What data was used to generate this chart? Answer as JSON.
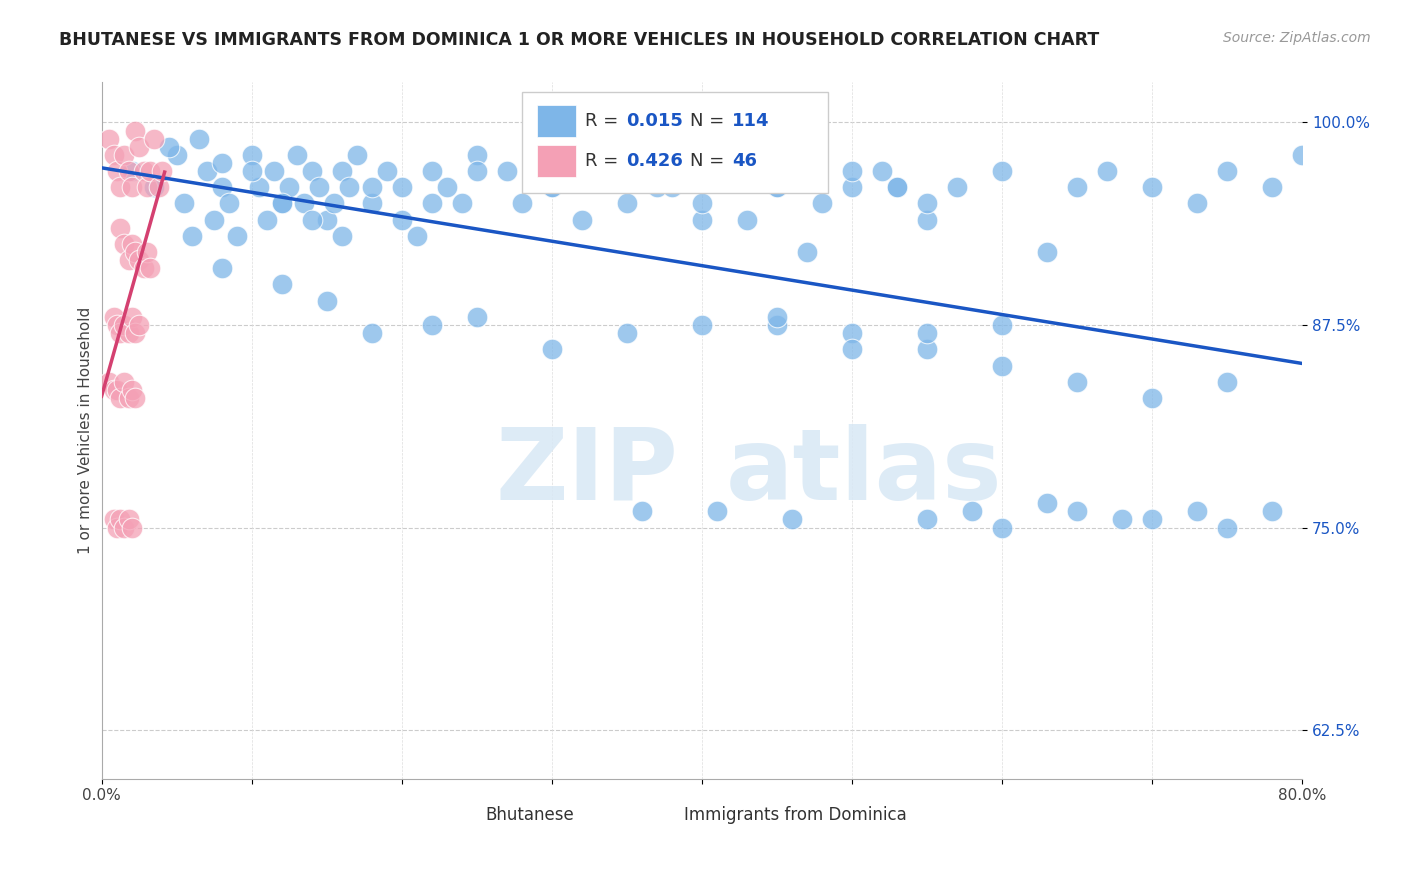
{
  "title": "BHUTANESE VS IMMIGRANTS FROM DOMINICA 1 OR MORE VEHICLES IN HOUSEHOLD CORRELATION CHART",
  "source_text": "Source: ZipAtlas.com",
  "ylabel": "1 or more Vehicles in Household",
  "xlim": [
    0.0,
    0.8
  ],
  "ylim": [
    0.595,
    1.025
  ],
  "ytick_positions": [
    0.625,
    0.75,
    0.875,
    1.0
  ],
  "yticklabels": [
    "62.5%",
    "75.0%",
    "87.5%",
    "100.0%"
  ],
  "R_blue": 0.015,
  "N_blue": 114,
  "R_pink": 0.426,
  "N_pink": 46,
  "blue_color": "#7EB6E8",
  "pink_color": "#F4A0B5",
  "blue_line_color": "#1A56C4",
  "pink_line_color": "#D44070",
  "legend_blue_label": "Bhutanese",
  "legend_pink_label": "Immigrants from Dominica",
  "blue_scatter_x": [
    0.02,
    0.035,
    0.05,
    0.055,
    0.06,
    0.065,
    0.07,
    0.075,
    0.08,
    0.085,
    0.09,
    0.1,
    0.105,
    0.11,
    0.115,
    0.12,
    0.125,
    0.13,
    0.135,
    0.14,
    0.145,
    0.15,
    0.155,
    0.16,
    0.165,
    0.17,
    0.18,
    0.19,
    0.2,
    0.21,
    0.22,
    0.23,
    0.24,
    0.25,
    0.27,
    0.3,
    0.33,
    0.35,
    0.37,
    0.4,
    0.43,
    0.45,
    0.47,
    0.5,
    0.52,
    0.53,
    0.55,
    0.57,
    0.6,
    0.63,
    0.65,
    0.67,
    0.7,
    0.73,
    0.75,
    0.78,
    0.045,
    0.08,
    0.1,
    0.12,
    0.14,
    0.16,
    0.18,
    0.2,
    0.22,
    0.25,
    0.28,
    0.3,
    0.32,
    0.35,
    0.38,
    0.4,
    0.43,
    0.45,
    0.48,
    0.5,
    0.53,
    0.55,
    0.45,
    0.5,
    0.55,
    0.6,
    0.08,
    0.12,
    0.15,
    0.18,
    0.22,
    0.25,
    0.3,
    0.35,
    0.4,
    0.45,
    0.5,
    0.55,
    0.6,
    0.65,
    0.7,
    0.75,
    0.55,
    0.6,
    0.65,
    0.7,
    0.75,
    0.78,
    0.58,
    0.63,
    0.68,
    0.73,
    0.36,
    0.41,
    0.46,
    0.8
  ],
  "blue_scatter_y": [
    0.97,
    0.96,
    0.98,
    0.95,
    0.93,
    0.99,
    0.97,
    0.94,
    0.96,
    0.95,
    0.93,
    0.98,
    0.96,
    0.94,
    0.97,
    0.95,
    0.96,
    0.98,
    0.95,
    0.97,
    0.96,
    0.94,
    0.95,
    0.97,
    0.96,
    0.98,
    0.95,
    0.97,
    0.96,
    0.93,
    0.97,
    0.96,
    0.95,
    0.98,
    0.97,
    0.96,
    0.97,
    0.95,
    0.96,
    0.94,
    0.97,
    0.96,
    0.92,
    0.96,
    0.97,
    0.96,
    0.94,
    0.96,
    0.97,
    0.92,
    0.96,
    0.97,
    0.96,
    0.95,
    0.97,
    0.96,
    0.985,
    0.975,
    0.97,
    0.95,
    0.94,
    0.93,
    0.96,
    0.94,
    0.95,
    0.97,
    0.95,
    0.96,
    0.94,
    0.97,
    0.96,
    0.95,
    0.94,
    0.96,
    0.95,
    0.97,
    0.96,
    0.95,
    0.875,
    0.87,
    0.86,
    0.875,
    0.91,
    0.9,
    0.89,
    0.87,
    0.875,
    0.88,
    0.86,
    0.87,
    0.875,
    0.88,
    0.86,
    0.87,
    0.85,
    0.84,
    0.83,
    0.84,
    0.755,
    0.75,
    0.76,
    0.755,
    0.75,
    0.76,
    0.76,
    0.765,
    0.755,
    0.76,
    0.76,
    0.76,
    0.755,
    0.98
  ],
  "pink_scatter_x": [
    0.005,
    0.008,
    0.01,
    0.012,
    0.015,
    0.018,
    0.02,
    0.022,
    0.025,
    0.028,
    0.03,
    0.032,
    0.035,
    0.038,
    0.04,
    0.012,
    0.015,
    0.018,
    0.02,
    0.022,
    0.025,
    0.028,
    0.03,
    0.032,
    0.008,
    0.01,
    0.012,
    0.015,
    0.018,
    0.02,
    0.022,
    0.025,
    0.005,
    0.008,
    0.01,
    0.012,
    0.015,
    0.018,
    0.02,
    0.022,
    0.008,
    0.01,
    0.012,
    0.015,
    0.018,
    0.02
  ],
  "pink_scatter_y": [
    0.99,
    0.98,
    0.97,
    0.96,
    0.98,
    0.97,
    0.96,
    0.995,
    0.985,
    0.97,
    0.96,
    0.97,
    0.99,
    0.96,
    0.97,
    0.935,
    0.925,
    0.915,
    0.925,
    0.92,
    0.915,
    0.91,
    0.92,
    0.91,
    0.88,
    0.875,
    0.87,
    0.875,
    0.87,
    0.88,
    0.87,
    0.875,
    0.84,
    0.835,
    0.835,
    0.83,
    0.84,
    0.83,
    0.835,
    0.83,
    0.755,
    0.75,
    0.755,
    0.75,
    0.755,
    0.75
  ],
  "watermark_zip": "ZIP",
  "watermark_atlas": "atlas"
}
